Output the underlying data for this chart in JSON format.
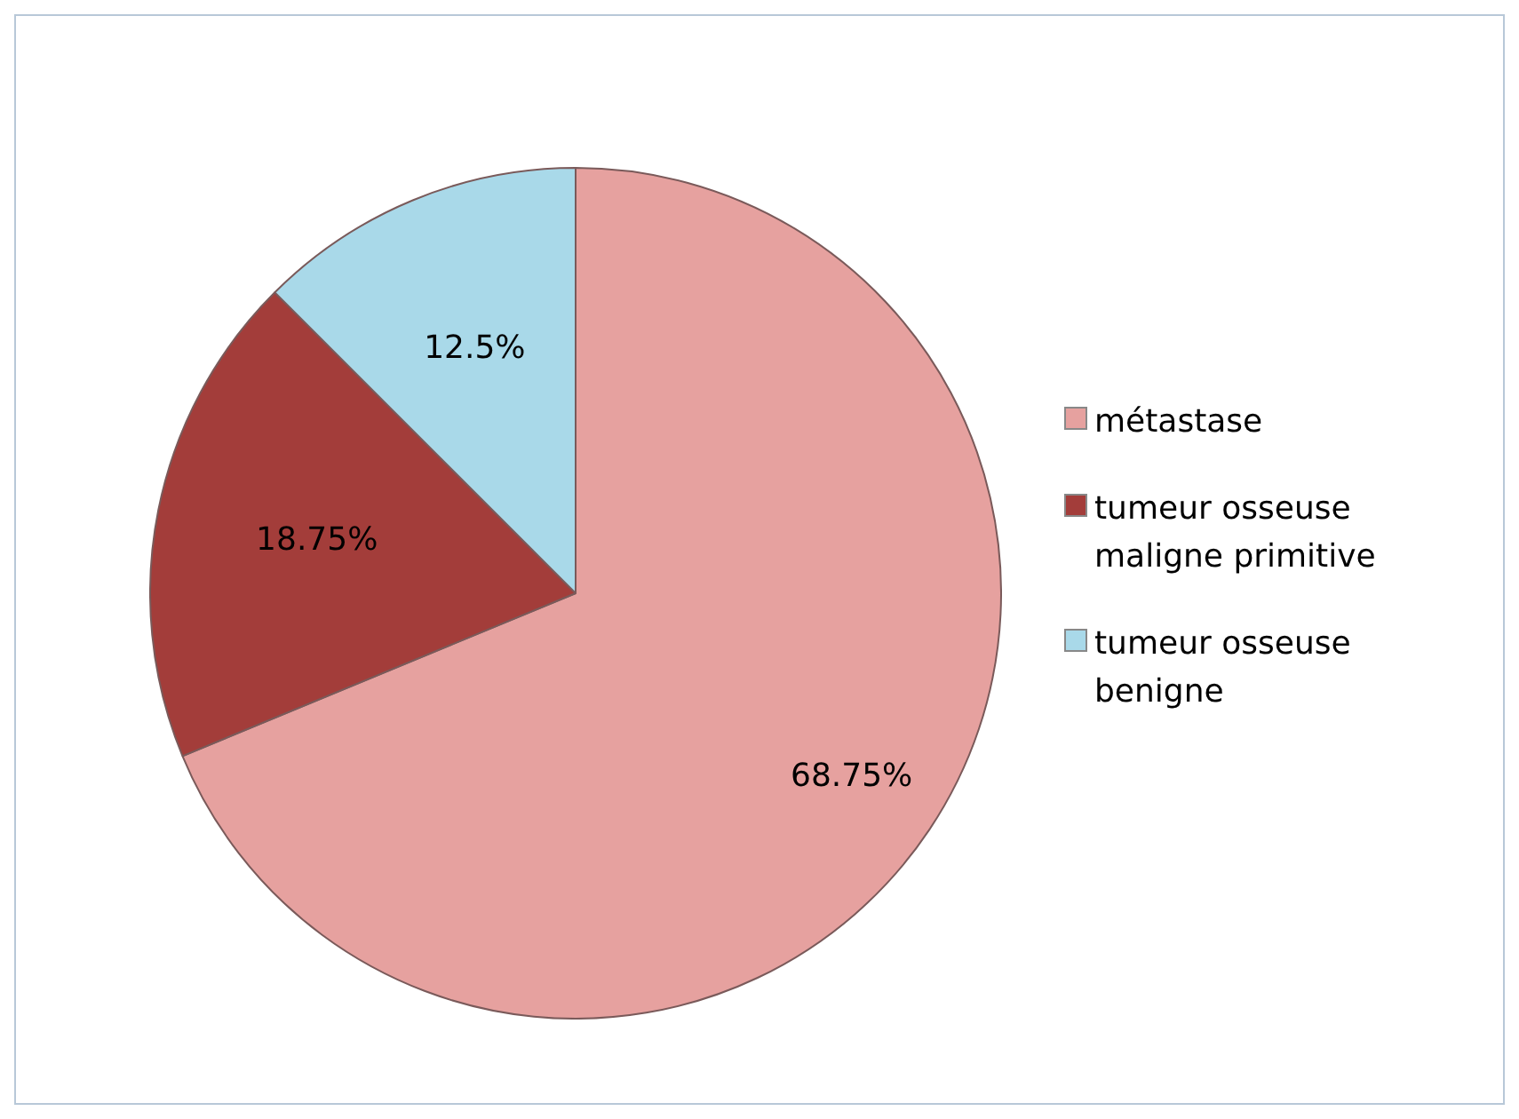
{
  "chart_data": {
    "type": "pie",
    "categories": [
      "métastase",
      "tumeur osseuse maligne primitive",
      "tumeur osseuse benigne"
    ],
    "values": [
      68.75,
      18.75,
      12.5
    ],
    "colors": [
      "#e6a19f",
      "#a33d3a",
      "#a9d9e9"
    ],
    "value_labels": [
      "68.75%",
      "18.75%",
      "12.5%"
    ],
    "legend": "right"
  }
}
